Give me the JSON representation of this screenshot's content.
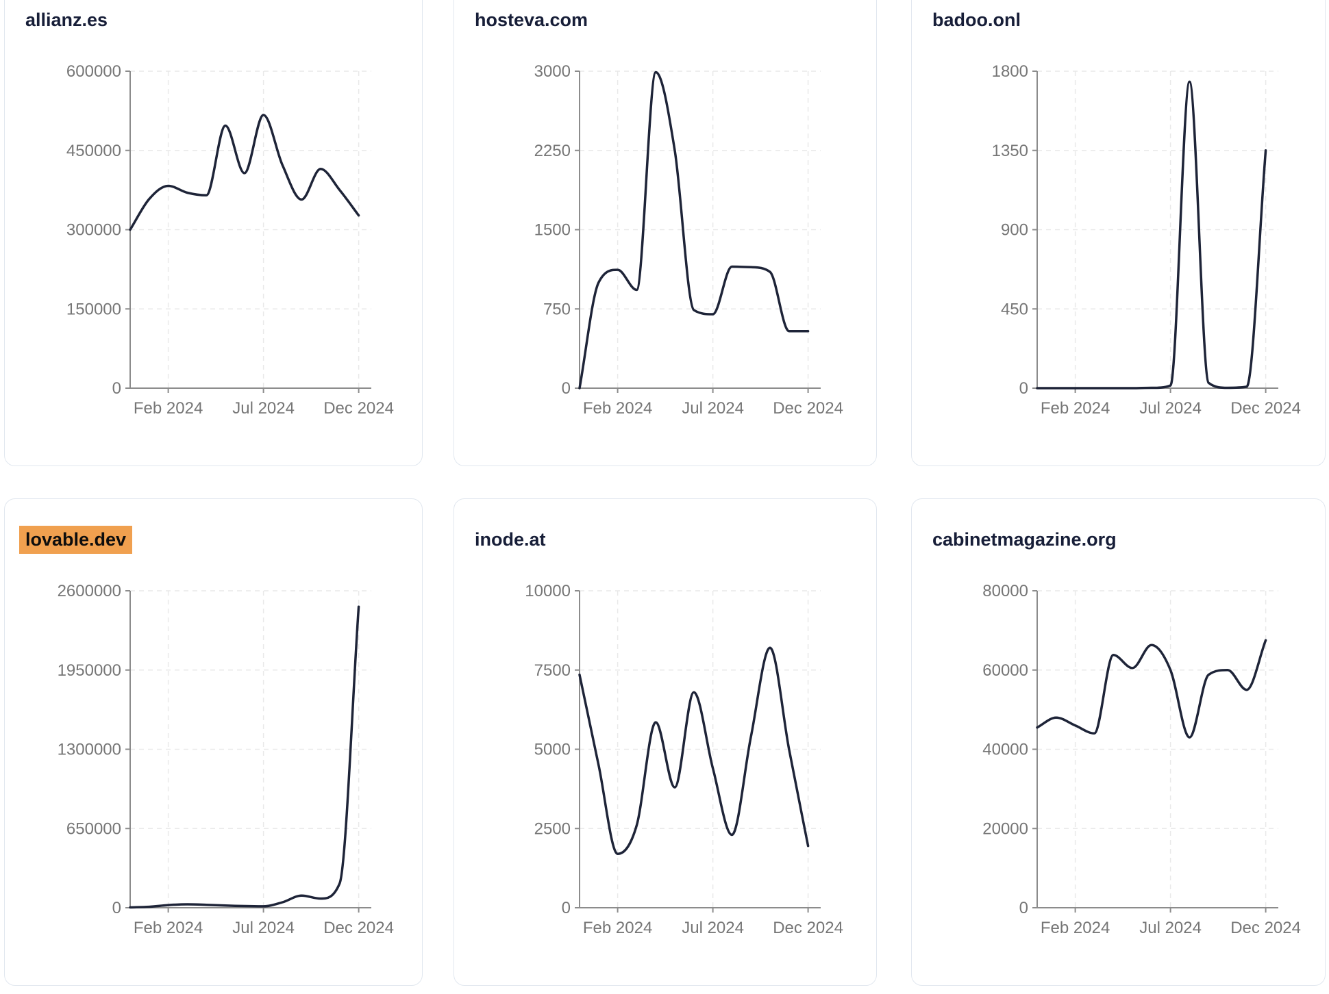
{
  "colors": {
    "line": "#1e2438",
    "title": "#171e38",
    "axis": "#8c8c8c",
    "tick_label": "#767676",
    "grid": "#e9e9e9",
    "card_border": "#e1e7ef",
    "card_bg": "#ffffff",
    "page_bg": "#ffffff",
    "highlight_bg": "#f0a04f",
    "highlight_text": "#0d0d0d"
  },
  "chart_data": {
    "type": "line",
    "x": [
      "Dec 2023",
      "Jan 2024",
      "Feb 2024",
      "Mar 2024",
      "Apr 2024",
      "May 2024",
      "Jun 2024",
      "Jul 2024",
      "Aug 2024",
      "Sep 2024",
      "Oct 2024",
      "Nov 2024",
      "Dec 2024"
    ],
    "x_tick_labels": [
      "Feb 2024",
      "Jul 2024",
      "Dec 2024"
    ],
    "x_tick_indices": [
      2,
      7,
      12
    ],
    "grid": "dashed",
    "legend": "none",
    "series": [
      {
        "name": "allianz.es",
        "highlighted": false,
        "ylim": [
          0,
          600000
        ],
        "y_ticks": [
          0,
          150000,
          300000,
          450000,
          600000
        ],
        "values": [
          300000,
          358000,
          383000,
          370000,
          365000,
          497000,
          407000,
          517000,
          422000,
          357000,
          415000,
          375000,
          327000
        ]
      },
      {
        "name": "hosteva.com",
        "highlighted": false,
        "ylim": [
          0,
          3000
        ],
        "y_ticks": [
          0,
          750,
          1500,
          2250,
          3000
        ],
        "values": [
          0,
          1000,
          1120,
          930,
          2990,
          2250,
          740,
          700,
          1150,
          1145,
          1100,
          540,
          540
        ]
      },
      {
        "name": "badoo.onl",
        "highlighted": false,
        "ylim": [
          0,
          1800
        ],
        "y_ticks": [
          0,
          450,
          900,
          1350,
          1800
        ],
        "values": [
          0,
          0,
          0,
          0,
          0,
          0,
          2,
          15,
          1740,
          30,
          2,
          8,
          1350
        ]
      },
      {
        "name": "lovable.dev",
        "highlighted": true,
        "ylim": [
          0,
          2600000
        ],
        "y_ticks": [
          0,
          650000,
          1300000,
          1950000,
          2600000
        ],
        "values": [
          3000,
          8000,
          22000,
          28000,
          24000,
          18000,
          14000,
          12000,
          45000,
          100000,
          75000,
          200000,
          2470000
        ]
      },
      {
        "name": "inode.at",
        "highlighted": false,
        "ylim": [
          0,
          10000
        ],
        "y_ticks": [
          0,
          2500,
          5000,
          7500,
          10000
        ],
        "values": [
          7350,
          4500,
          1700,
          2600,
          5850,
          3800,
          6800,
          4400,
          2300,
          5400,
          8200,
          5000,
          1950
        ]
      },
      {
        "name": "cabinetmagazine.org",
        "highlighted": false,
        "ylim": [
          0,
          80000
        ],
        "y_ticks": [
          0,
          20000,
          40000,
          60000,
          80000
        ],
        "values": [
          45500,
          48000,
          46000,
          44000,
          63800,
          60500,
          66300,
          60000,
          43000,
          58800,
          60000,
          55000,
          67500
        ]
      }
    ]
  }
}
